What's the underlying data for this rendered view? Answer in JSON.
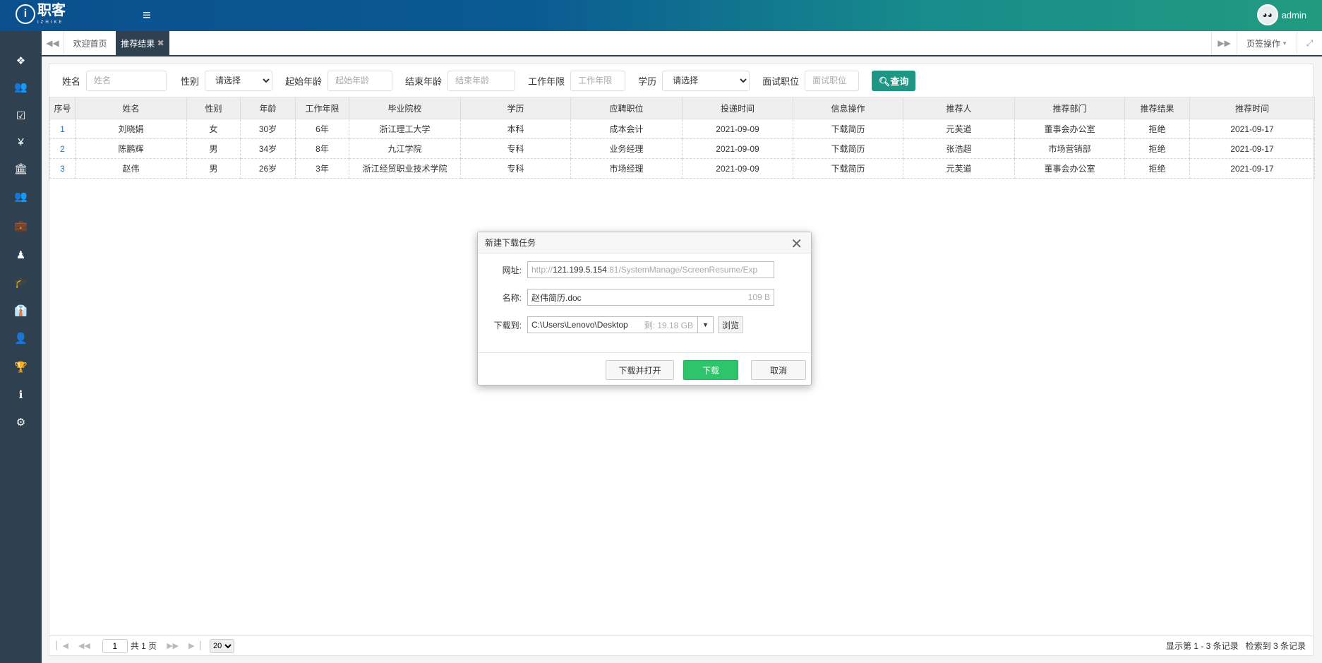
{
  "header": {
    "logo_text": "职客",
    "logo_sub": "IZHIKE",
    "user": "admin"
  },
  "sidebar": {
    "items": [
      {
        "icon": "cubes-icon",
        "glyph": "❖"
      },
      {
        "icon": "users-icon",
        "glyph": "👥"
      },
      {
        "icon": "check-square-icon",
        "glyph": "☑"
      },
      {
        "icon": "yen-icon",
        "glyph": "¥"
      },
      {
        "icon": "bank-icon",
        "glyph": "🏛"
      },
      {
        "icon": "group-icon",
        "glyph": "👥"
      },
      {
        "icon": "briefcase-icon",
        "glyph": "💼"
      },
      {
        "icon": "user-tie-icon",
        "glyph": "♟"
      },
      {
        "icon": "graduation-cap-icon",
        "glyph": "🎓"
      },
      {
        "icon": "male-icon",
        "glyph": "👔"
      },
      {
        "icon": "user-icon",
        "glyph": "👤"
      },
      {
        "icon": "trophy-icon",
        "glyph": "🏆"
      },
      {
        "icon": "info-icon",
        "glyph": "ℹ"
      },
      {
        "icon": "cogs-icon",
        "glyph": "⚙"
      }
    ]
  },
  "tabs": {
    "home": "欢迎首页",
    "active": "推荐结果",
    "page_ops": "页签操作"
  },
  "filters": {
    "name_label": "姓名",
    "name_ph": "姓名",
    "gender_label": "性别",
    "gender_value": "请选择",
    "start_age_label": "起始年龄",
    "start_age_ph": "起始年龄",
    "end_age_label": "结束年龄",
    "end_age_ph": "结束年龄",
    "work_years_label": "工作年限",
    "work_years_ph": "工作年限",
    "edu_label": "学历",
    "edu_value": "请选择",
    "position_label": "面试职位",
    "position_ph": "面试职位",
    "search_label": "查询"
  },
  "table": {
    "headers": [
      "序号",
      "姓名",
      "性别",
      "年龄",
      "工作年限",
      "毕业院校",
      "学历",
      "应聘职位",
      "投递时间",
      "信息操作",
      "推荐人",
      "推荐部门",
      "推荐结果",
      "推荐时间"
    ],
    "rows": [
      [
        "1",
        "刘晓娟",
        "女",
        "30岁",
        "6年",
        "浙江理工大学",
        "本科",
        "成本会计",
        "2021-09-09",
        "下载简历",
        "元芙道",
        "董事会办公室",
        "拒绝",
        "2021-09-17"
      ],
      [
        "2",
        "陈鹏辉",
        "男",
        "34岁",
        "8年",
        "九江学院",
        "专科",
        "业务经理",
        "2021-09-09",
        "下载简历",
        "张浩超",
        "市场营销部",
        "拒绝",
        "2021-09-17"
      ],
      [
        "3",
        "赵伟",
        "男",
        "26岁",
        "3年",
        "浙江经贸职业技术学院",
        "专科",
        "市场经理",
        "2021-09-09",
        "下载简历",
        "元芙道",
        "董事会办公室",
        "拒绝",
        "2021-09-17"
      ]
    ]
  },
  "pager": {
    "page": "1",
    "total_pages": "共 1 页",
    "page_size": "20",
    "info": "显示第 1 - 3 条记录   检索到 3 条记录"
  },
  "dialog": {
    "title": "新建下载任务",
    "url_label": "网址:",
    "url_prefix": "http://",
    "url_host": "121.199.5.154",
    "url_rest": ":81/SystemManage/ScreenResume/Exp",
    "name_label": "名称:",
    "filename": "赵伟简历.doc",
    "size": "109 B",
    "dest_label": "下载到:",
    "path": "C:\\Users\\Lenovo\\Desktop",
    "free": "剩: 19.18 GB",
    "browse": "浏览",
    "download_open": "下载并打开",
    "download": "下载",
    "cancel": "取消"
  }
}
